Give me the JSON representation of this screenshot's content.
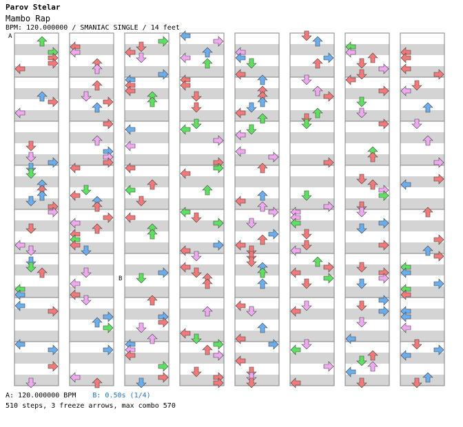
{
  "header": {
    "artist": "Parov Stelar",
    "title": "Mambo Rap",
    "info": "BPM: 120.000000 / SMANIAC SINGLE / 14 feet"
  },
  "markers": {
    "a": "A",
    "b": "B"
  },
  "footer": {
    "bpm_a": "A: 120.000000 BPM",
    "bpm_b": "B: 0.50s (1/4)",
    "stats": "510 steps, 3 freeze arrows, max combo 570"
  },
  "colors": {
    "red": "#f07a7a",
    "blue": "#6aaeee",
    "pink": "#f0a8f0",
    "green": "#60e060",
    "yellow": "#f0f000",
    "stripe": "#d4d4d4",
    "border": "#808080"
  },
  "chart_data": {
    "type": "step-chart",
    "columns": 8,
    "measures_per_column": 8,
    "lanes": [
      "left",
      "down",
      "up",
      "right"
    ],
    "seed": 7
  }
}
